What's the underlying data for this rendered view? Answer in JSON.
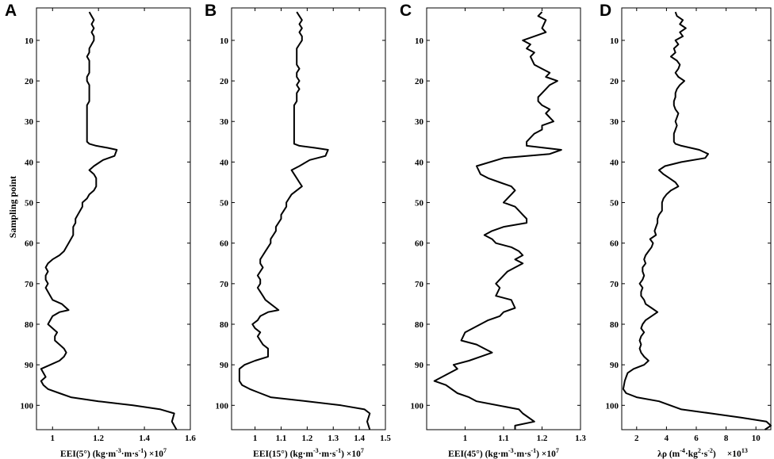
{
  "y_axis_label": "Sampling point",
  "chart_data": [
    {
      "type": "line",
      "panel_label": "A",
      "xlabel_main": "EEI(5°)  (kg·m",
      "xlabel_sup1": "-3",
      "xlabel_mid": "·m·s",
      "xlabel_sup2": "-1",
      "xlabel_end": ") ×10",
      "xlabel_exp": "7",
      "xlim": [
        0.93,
        1.6
      ],
      "ylim": [
        2,
        106
      ],
      "xticks": [
        1,
        1.2,
        1.4,
        1.6
      ],
      "xtick_labels": [
        "1",
        "1.2",
        "1.4",
        "1.6"
      ],
      "yticks": [
        10,
        20,
        30,
        40,
        50,
        60,
        70,
        80,
        90,
        100
      ],
      "ytick_labels": [
        "10",
        "20",
        "30",
        "40",
        "50",
        "60",
        "70",
        "80",
        "90",
        "100"
      ],
      "grid": false,
      "series": [
        {
          "x": [
            1.16,
            1.17,
            1.18,
            1.17,
            1.18,
            1.17,
            1.18,
            1.18,
            1.17,
            1.16,
            1.16,
            1.15,
            1.16,
            1.16,
            1.16,
            1.16,
            1.15,
            1.15,
            1.16,
            1.16,
            1.16,
            1.16,
            1.16,
            1.15,
            1.15,
            1.15,
            1.15,
            1.15,
            1.15,
            1.15,
            1.15,
            1.15,
            1.15,
            1.16,
            1.19,
            1.24,
            1.28,
            1.27,
            1.22,
            1.18,
            1.16,
            1.18,
            1.19,
            1.19,
            1.19,
            1.18,
            1.16,
            1.15,
            1.13,
            1.13,
            1.12,
            1.11,
            1.1,
            1.1,
            1.09,
            1.09,
            1.09,
            1.08,
            1.07,
            1.06,
            1.05,
            1.03,
            1.0,
            0.98,
            0.97,
            0.98,
            0.97,
            0.97,
            0.98,
            0.97,
            0.98,
            0.99,
            1.0,
            1.04,
            1.06,
            1.07,
            1.03,
            1.0,
            0.99,
            0.98,
            1.0,
            1.02,
            1.01,
            1.01,
            1.03,
            1.05,
            1.06,
            1.05,
            1.03,
            0.99,
            0.95,
            0.96,
            0.97,
            0.95,
            0.96,
            0.98,
            1.03,
            1.08,
            1.2,
            1.35,
            1.47,
            1.53,
            1.52,
            1.54
          ],
          "y": [
            3,
            4,
            5,
            6,
            7,
            8,
            9,
            10,
            11,
            12,
            13,
            14,
            15,
            16,
            17,
            18,
            19,
            20,
            21,
            22,
            23,
            24,
            25,
            26,
            27,
            28,
            29,
            30,
            31,
            32,
            33,
            34,
            35,
            35.5,
            36,
            36.5,
            37,
            38.5,
            39.5,
            41,
            42,
            43,
            44,
            45,
            46,
            47,
            48,
            49,
            50,
            51,
            52,
            53,
            54,
            55,
            56,
            57,
            58,
            59,
            60,
            61,
            62,
            63,
            64,
            65,
            66,
            67,
            68,
            69,
            70,
            71,
            72,
            73,
            74,
            75,
            76,
            76.5,
            77,
            78,
            79,
            80,
            81,
            82,
            83,
            84,
            85,
            86,
            87,
            88,
            89,
            90,
            91,
            92,
            93,
            94,
            95,
            96,
            97,
            98,
            99,
            100,
            101,
            102,
            104,
            106
          ]
        }
      ]
    },
    {
      "type": "line",
      "panel_label": "B",
      "xlabel_main": "EEI(15°)  (kg·m",
      "xlabel_sup1": "-3",
      "xlabel_mid": "·m·s",
      "xlabel_sup2": "-1",
      "xlabel_end": ") ×10",
      "xlabel_exp": "7",
      "xlim": [
        0.91,
        1.5
      ],
      "ylim": [
        2,
        106
      ],
      "xticks": [
        1,
        1.1,
        1.2,
        1.3,
        1.4,
        1.5
      ],
      "xtick_labels": [
        "1",
        "1.1",
        "1.2",
        "1.3",
        "1.4",
        "1.5"
      ],
      "yticks": [
        10,
        20,
        30,
        40,
        50,
        60,
        70,
        80,
        90,
        100
      ],
      "ytick_labels": [
        "10",
        "20",
        "30",
        "40",
        "50",
        "60",
        "70",
        "80",
        "90",
        "100"
      ],
      "grid": false,
      "series": [
        {
          "x": [
            1.16,
            1.17,
            1.18,
            1.17,
            1.18,
            1.17,
            1.18,
            1.18,
            1.17,
            1.16,
            1.16,
            1.16,
            1.16,
            1.16,
            1.17,
            1.16,
            1.16,
            1.17,
            1.16,
            1.17,
            1.16,
            1.16,
            1.16,
            1.15,
            1.15,
            1.15,
            1.15,
            1.15,
            1.15,
            1.15,
            1.15,
            1.15,
            1.15,
            1.15,
            1.17,
            1.23,
            1.28,
            1.27,
            1.21,
            1.17,
            1.14,
            1.15,
            1.16,
            1.17,
            1.18,
            1.16,
            1.14,
            1.13,
            1.12,
            1.12,
            1.11,
            1.1,
            1.1,
            1.09,
            1.08,
            1.08,
            1.07,
            1.06,
            1.06,
            1.05,
            1.04,
            1.03,
            1.02,
            1.02,
            1.03,
            1.02,
            1.01,
            1.02,
            1.02,
            1.01,
            1.02,
            1.03,
            1.04,
            1.06,
            1.08,
            1.09,
            1.05,
            1.02,
            1.01,
            0.99,
            1.0,
            1.02,
            1.01,
            1.02,
            1.03,
            1.05,
            1.05,
            1.05,
            1.0,
            0.96,
            0.94,
            0.94,
            0.94,
            0.94,
            0.95,
            0.98,
            1.02,
            1.06,
            1.2,
            1.33,
            1.42,
            1.44,
            1.43,
            1.44
          ],
          "y": [
            3,
            4,
            5,
            6,
            7,
            8,
            9,
            10,
            11,
            12,
            13,
            14,
            15,
            16,
            17,
            18,
            19,
            20,
            21,
            22,
            23,
            24,
            25,
            26,
            27,
            28,
            29,
            30,
            31,
            32,
            33,
            34,
            35,
            35.5,
            36,
            36.5,
            37,
            38.5,
            39.5,
            41,
            42,
            43,
            44,
            45,
            46,
            47,
            48,
            49,
            50,
            51,
            52,
            53,
            54,
            55,
            56,
            57,
            58,
            59,
            60,
            61,
            62,
            63,
            64,
            65,
            66,
            67,
            68,
            69,
            70,
            71,
            72,
            73,
            74,
            75,
            76,
            76.5,
            77,
            78,
            79,
            80,
            81,
            82,
            83,
            84,
            85,
            86,
            87,
            88,
            89,
            90,
            91,
            92,
            93,
            94,
            95,
            96,
            97,
            98,
            99,
            100,
            101,
            102,
            104,
            106
          ]
        }
      ]
    },
    {
      "type": "line",
      "panel_label": "C",
      "xlabel_main": "EEI(45°)  (kg·m",
      "xlabel_sup1": "-3",
      "xlabel_mid": "·m·s",
      "xlabel_sup2": "-1",
      "xlabel_end": ") ×10",
      "xlabel_exp": "7",
      "xlim": [
        0.9,
        1.3
      ],
      "ylim": [
        2,
        106
      ],
      "xticks": [
        1,
        1.1,
        1.2,
        1.3
      ],
      "xtick_labels": [
        "1",
        "1.1",
        "1.2",
        "1.3"
      ],
      "yticks": [
        10,
        20,
        30,
        40,
        50,
        60,
        70,
        80,
        90,
        100
      ],
      "ytick_labels": [
        "10",
        "20",
        "30",
        "40",
        "50",
        "60",
        "70",
        "80",
        "90",
        "100"
      ],
      "grid": false,
      "series": [
        {
          "x": [
            1.2,
            1.19,
            1.21,
            1.2,
            1.21,
            1.18,
            1.15,
            1.17,
            1.16,
            1.18,
            1.17,
            1.18,
            1.2,
            1.22,
            1.21,
            1.24,
            1.22,
            1.2,
            1.19,
            1.19,
            1.2,
            1.22,
            1.21,
            1.23,
            1.2,
            1.2,
            1.18,
            1.17,
            1.16,
            1.16,
            1.25,
            1.22,
            1.1,
            1.03,
            1.04,
            1.06,
            1.09,
            1.12,
            1.13,
            1.12,
            1.1,
            1.13,
            1.14,
            1.15,
            1.16,
            1.16,
            1.1,
            1.07,
            1.05,
            1.07,
            1.08,
            1.12,
            1.14,
            1.15,
            1.13,
            1.15,
            1.13,
            1.11,
            1.1,
            1.08,
            1.09,
            1.08,
            1.12,
            1.13,
            1.1,
            1.09,
            1.06,
            1.04,
            1.02,
            1.0,
            0.99,
            1.03,
            1.05,
            1.07,
            1.04,
            1.01,
            0.97,
            0.98,
            0.92,
            0.95,
            0.98,
            1.01,
            1.03,
            1.14,
            1.15,
            1.18,
            1.13,
            1.13
          ],
          "y": [
            3,
            4,
            5,
            7,
            8,
            9,
            10,
            11,
            12,
            13,
            14,
            16,
            17,
            18,
            19,
            20,
            21,
            23,
            24,
            25,
            26,
            27,
            28,
            30,
            31,
            32,
            33,
            34,
            35,
            36,
            37,
            38,
            39,
            41,
            43,
            44,
            45,
            46,
            47,
            48,
            50,
            51,
            52,
            53,
            54,
            55,
            56,
            57,
            58,
            59,
            60,
            61,
            62,
            63,
            64,
            65,
            66,
            67,
            68,
            70,
            71,
            73,
            74,
            76,
            77,
            78,
            79,
            80,
            81,
            82,
            84,
            85,
            86,
            87,
            88,
            89,
            90,
            91,
            94,
            95,
            97,
            98,
            99,
            101,
            102,
            104,
            105,
            106
          ]
        }
      ]
    },
    {
      "type": "line",
      "panel_label": "D",
      "xlabel_main": "λρ  (m",
      "xlabel_sup1": "-4",
      "xlabel_mid": "·kg",
      "xlabel_sup2": "2",
      "xlabel_mid2": "·s",
      "xlabel_sup3": "-2",
      "xlabel_end": ")",
      "xlabel_mult": "×10",
      "xlabel_exp": "13",
      "xlim": [
        1,
        11
      ],
      "ylim": [
        2,
        106
      ],
      "xticks": [
        2,
        4,
        6,
        8,
        10
      ],
      "xtick_labels": [
        "2",
        "4",
        "6",
        "8",
        "10"
      ],
      "yticks": [
        10,
        20,
        30,
        40,
        50,
        60,
        70,
        80,
        90,
        100
      ],
      "ytick_labels": [
        "10",
        "20",
        "30",
        "40",
        "50",
        "60",
        "70",
        "80",
        "90",
        "100"
      ],
      "grid": false,
      "series": [
        {
          "x": [
            4.6,
            4.7,
            5.1,
            4.9,
            5.3,
            4.9,
            5.1,
            4.6,
            4.8,
            4.5,
            4.6,
            4.3,
            4.7,
            4.9,
            4.8,
            4.6,
            4.8,
            5.2,
            4.9,
            4.7,
            4.6,
            4.6,
            4.5,
            4.5,
            4.6,
            4.8,
            4.7,
            4.6,
            4.7,
            4.6,
            4.5,
            4.5,
            4.5,
            4.6,
            5.0,
            6.2,
            6.8,
            6.6,
            5.0,
            3.9,
            3.5,
            3.8,
            4.2,
            4.6,
            4.8,
            4.3,
            4.0,
            3.8,
            3.7,
            3.7,
            3.5,
            3.4,
            3.4,
            3.2,
            3.3,
            2.9,
            3.1,
            3.0,
            2.8,
            2.6,
            2.5,
            2.6,
            2.4,
            2.4,
            2.5,
            2.4,
            2.2,
            2.4,
            2.3,
            2.3,
            2.5,
            2.6,
            3.0,
            3.4,
            3.0,
            2.6,
            2.4,
            2.3,
            2.5,
            2.3,
            2.2,
            2.3,
            2.2,
            2.3,
            2.5,
            2.8,
            2.5,
            1.8,
            1.4,
            1.3,
            1.2,
            1.1,
            1.3,
            2.0,
            3.5,
            5.0,
            7.0,
            9.0,
            10.7,
            11.0,
            10.6
          ],
          "y": [
            3,
            4,
            5,
            6,
            7,
            8,
            9,
            10,
            11,
            12,
            13,
            14,
            15,
            16,
            17,
            18,
            19,
            20,
            21,
            22,
            23,
            24,
            25,
            26,
            27,
            28,
            29,
            30,
            31,
            32,
            33,
            34,
            35,
            35.5,
            36,
            37,
            38,
            39,
            40,
            41,
            42,
            43,
            44,
            45,
            46,
            47,
            48,
            49,
            50,
            52,
            53,
            54,
            55,
            57,
            58,
            59,
            60,
            61,
            62,
            63,
            64,
            65,
            66,
            67,
            68,
            69,
            70,
            71,
            72,
            73,
            74,
            75,
            76,
            77,
            78,
            79,
            80,
            81,
            82,
            83,
            84,
            85,
            86,
            87,
            88,
            89,
            90,
            91,
            92,
            93,
            94,
            96,
            97,
            98,
            99,
            101,
            102,
            103,
            104,
            105,
            106
          ]
        }
      ]
    }
  ]
}
